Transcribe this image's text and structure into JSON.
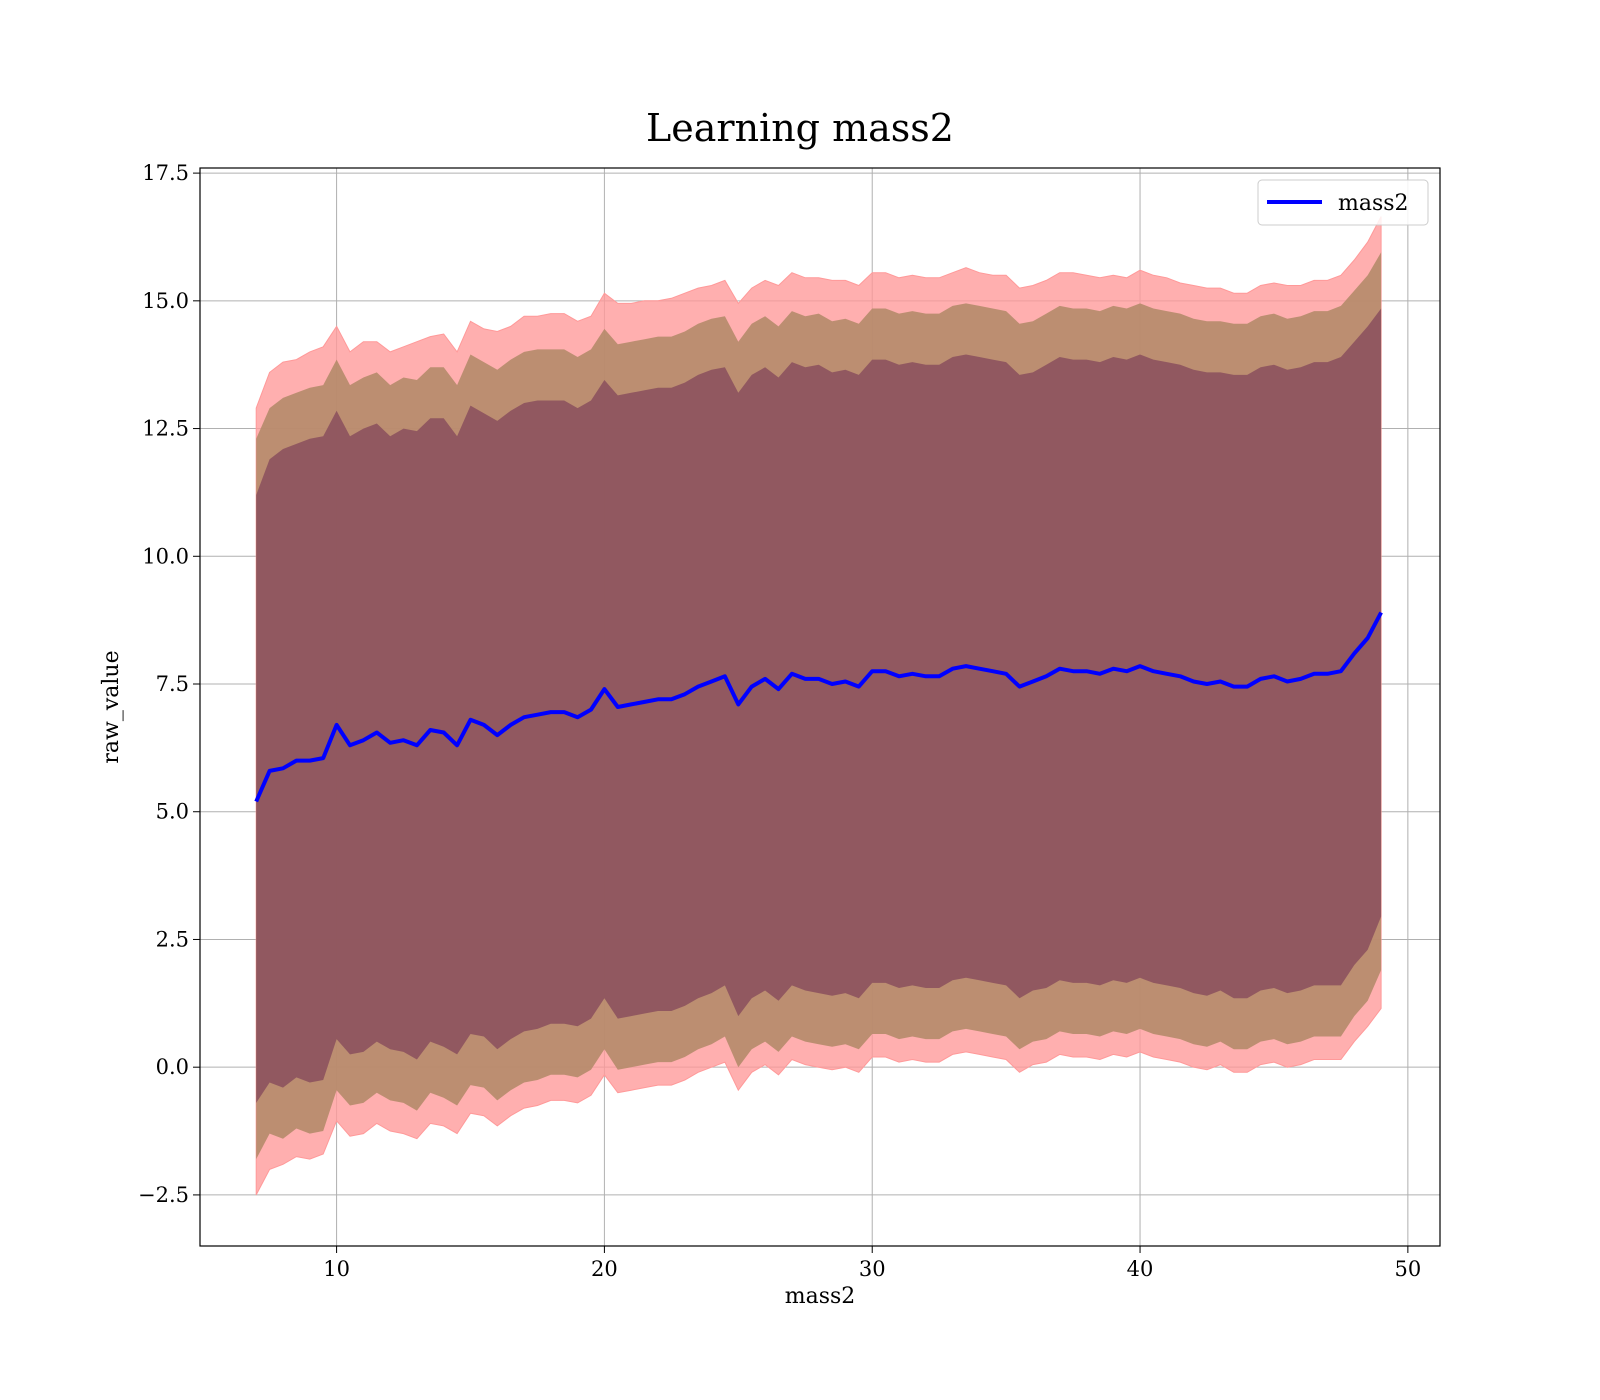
{
  "chart_data": {
    "type": "area",
    "title": "Learning mass2",
    "xlabel": "mass2",
    "ylabel": "raw_value",
    "xlim": [
      4.9,
      51.2
    ],
    "ylim": [
      -3.5,
      17.6
    ],
    "x_ticks": [
      10,
      20,
      30,
      40,
      50
    ],
    "y_ticks": [
      -2.5,
      0.0,
      2.5,
      5.0,
      7.5,
      10.0,
      12.5,
      15.0,
      17.5
    ],
    "x_tick_labels": [
      "10",
      "20",
      "30",
      "40",
      "50"
    ],
    "y_tick_labels": [
      "−2.5",
      "0.0",
      "2.5",
      "5.0",
      "7.5",
      "10.0",
      "12.5",
      "15.0",
      "17.5"
    ],
    "grid": true,
    "legend": {
      "placement": "top-right",
      "entries": [
        "mass2"
      ]
    },
    "band_colors": {
      "outer": "#ff9999",
      "middle": "#b08866",
      "inner": "#8a4f5d"
    },
    "series": [
      {
        "name": "mass2",
        "color": "#0000ff",
        "x": [
          7.0,
          7.5,
          8.0,
          8.5,
          9.0,
          9.5,
          10.0,
          10.5,
          11.0,
          11.5,
          12.0,
          12.5,
          13.0,
          13.5,
          14.0,
          14.5,
          15.0,
          15.5,
          16.0,
          16.5,
          17.0,
          17.5,
          18.0,
          18.5,
          19.0,
          19.5,
          20.0,
          20.5,
          21.0,
          21.5,
          22.0,
          22.5,
          23.0,
          23.5,
          24.0,
          24.5,
          25.0,
          25.5,
          26.0,
          26.5,
          27.0,
          27.5,
          28.0,
          28.5,
          29.0,
          29.5,
          30.0,
          30.5,
          31.0,
          31.5,
          32.0,
          32.5,
          33.0,
          33.5,
          34.0,
          34.5,
          35.0,
          35.5,
          36.0,
          36.5,
          37.0,
          37.5,
          38.0,
          38.5,
          39.0,
          39.5,
          40.0,
          40.5,
          41.0,
          41.5,
          42.0,
          42.5,
          43.0,
          43.5,
          44.0,
          44.5,
          45.0,
          45.5,
          46.0,
          46.5,
          47.0,
          47.5,
          48.0,
          48.5,
          49.0
        ],
        "values": [
          5.2,
          5.8,
          5.85,
          6.0,
          6.0,
          6.05,
          6.7,
          6.3,
          6.4,
          6.55,
          6.35,
          6.4,
          6.3,
          6.6,
          6.55,
          6.3,
          6.8,
          6.7,
          6.5,
          6.7,
          6.85,
          6.9,
          6.95,
          6.95,
          6.85,
          7.0,
          7.4,
          7.05,
          7.1,
          7.15,
          7.2,
          7.2,
          7.3,
          7.45,
          7.55,
          7.65,
          7.1,
          7.45,
          7.6,
          7.4,
          7.7,
          7.6,
          7.6,
          7.5,
          7.55,
          7.45,
          7.75,
          7.75,
          7.65,
          7.7,
          7.65,
          7.65,
          7.8,
          7.85,
          7.8,
          7.75,
          7.7,
          7.45,
          7.55,
          7.65,
          7.8,
          7.75,
          7.75,
          7.7,
          7.8,
          7.75,
          7.85,
          7.75,
          7.7,
          7.65,
          7.55,
          7.5,
          7.55,
          7.45,
          7.45,
          7.6,
          7.65,
          7.55,
          7.6,
          7.7,
          7.7,
          7.75,
          8.1,
          8.4,
          8.9
        ],
        "outer_upper": [
          12.9,
          13.6,
          13.8,
          13.85,
          14.0,
          14.1,
          14.5,
          14.0,
          14.2,
          14.2,
          14.0,
          14.1,
          14.2,
          14.3,
          14.35,
          14.0,
          14.6,
          14.45,
          14.4,
          14.5,
          14.7,
          14.7,
          14.75,
          14.75,
          14.6,
          14.7,
          15.15,
          14.95,
          14.95,
          15.0,
          15.0,
          15.05,
          15.15,
          15.25,
          15.3,
          15.4,
          14.95,
          15.25,
          15.4,
          15.3,
          15.55,
          15.45,
          15.45,
          15.4,
          15.4,
          15.3,
          15.55,
          15.55,
          15.45,
          15.5,
          15.45,
          15.45,
          15.55,
          15.65,
          15.55,
          15.5,
          15.5,
          15.25,
          15.3,
          15.4,
          15.55,
          15.55,
          15.5,
          15.45,
          15.5,
          15.45,
          15.6,
          15.5,
          15.45,
          15.35,
          15.3,
          15.25,
          15.25,
          15.15,
          15.15,
          15.3,
          15.35,
          15.3,
          15.3,
          15.4,
          15.4,
          15.5,
          15.8,
          16.15,
          16.65
        ],
        "middle_upper": [
          12.3,
          12.9,
          13.1,
          13.2,
          13.3,
          13.35,
          13.85,
          13.35,
          13.5,
          13.6,
          13.35,
          13.5,
          13.45,
          13.7,
          13.7,
          13.35,
          13.95,
          13.8,
          13.65,
          13.85,
          14.0,
          14.05,
          14.05,
          14.05,
          13.9,
          14.05,
          14.45,
          14.15,
          14.2,
          14.25,
          14.3,
          14.3,
          14.4,
          14.55,
          14.65,
          14.7,
          14.2,
          14.55,
          14.7,
          14.5,
          14.8,
          14.7,
          14.75,
          14.6,
          14.65,
          14.55,
          14.85,
          14.85,
          14.75,
          14.8,
          14.75,
          14.75,
          14.9,
          14.95,
          14.9,
          14.85,
          14.8,
          14.55,
          14.6,
          14.75,
          14.9,
          14.85,
          14.85,
          14.8,
          14.9,
          14.85,
          14.95,
          14.85,
          14.8,
          14.75,
          14.65,
          14.6,
          14.6,
          14.55,
          14.55,
          14.7,
          14.75,
          14.65,
          14.7,
          14.8,
          14.8,
          14.9,
          15.2,
          15.5,
          15.95
        ],
        "inner_upper": [
          11.2,
          11.9,
          12.1,
          12.2,
          12.3,
          12.35,
          12.85,
          12.35,
          12.5,
          12.6,
          12.35,
          12.5,
          12.45,
          12.7,
          12.7,
          12.35,
          12.95,
          12.8,
          12.65,
          12.85,
          13.0,
          13.05,
          13.05,
          13.05,
          12.9,
          13.05,
          13.45,
          13.15,
          13.2,
          13.25,
          13.3,
          13.3,
          13.4,
          13.55,
          13.65,
          13.7,
          13.2,
          13.55,
          13.7,
          13.5,
          13.8,
          13.7,
          13.75,
          13.6,
          13.65,
          13.55,
          13.85,
          13.85,
          13.75,
          13.8,
          13.75,
          13.75,
          13.9,
          13.95,
          13.9,
          13.85,
          13.8,
          13.55,
          13.6,
          13.75,
          13.9,
          13.85,
          13.85,
          13.8,
          13.9,
          13.85,
          13.95,
          13.85,
          13.8,
          13.75,
          13.65,
          13.6,
          13.6,
          13.55,
          13.55,
          13.7,
          13.75,
          13.65,
          13.7,
          13.8,
          13.8,
          13.9,
          14.2,
          14.5,
          14.85
        ],
        "inner_lower": [
          -0.7,
          -0.3,
          -0.4,
          -0.2,
          -0.3,
          -0.25,
          0.55,
          0.25,
          0.3,
          0.5,
          0.35,
          0.3,
          0.15,
          0.5,
          0.4,
          0.25,
          0.65,
          0.6,
          0.35,
          0.55,
          0.7,
          0.75,
          0.85,
          0.85,
          0.8,
          0.95,
          1.35,
          0.95,
          1.0,
          1.05,
          1.1,
          1.1,
          1.2,
          1.35,
          1.45,
          1.6,
          1.0,
          1.35,
          1.5,
          1.3,
          1.6,
          1.5,
          1.45,
          1.4,
          1.45,
          1.35,
          1.65,
          1.65,
          1.55,
          1.6,
          1.55,
          1.55,
          1.7,
          1.75,
          1.7,
          1.65,
          1.6,
          1.35,
          1.5,
          1.55,
          1.7,
          1.65,
          1.65,
          1.6,
          1.7,
          1.65,
          1.75,
          1.65,
          1.6,
          1.55,
          1.45,
          1.4,
          1.5,
          1.35,
          1.35,
          1.5,
          1.55,
          1.45,
          1.5,
          1.6,
          1.6,
          1.6,
          2.0,
          2.3,
          2.95
        ],
        "middle_lower": [
          -1.8,
          -1.3,
          -1.4,
          -1.2,
          -1.3,
          -1.25,
          -0.45,
          -0.75,
          -0.7,
          -0.5,
          -0.65,
          -0.7,
          -0.85,
          -0.5,
          -0.6,
          -0.75,
          -0.35,
          -0.4,
          -0.65,
          -0.45,
          -0.3,
          -0.25,
          -0.15,
          -0.15,
          -0.2,
          -0.05,
          0.35,
          -0.05,
          0.0,
          0.05,
          0.1,
          0.1,
          0.2,
          0.35,
          0.45,
          0.6,
          0.0,
          0.35,
          0.5,
          0.3,
          0.6,
          0.5,
          0.45,
          0.4,
          0.45,
          0.35,
          0.65,
          0.65,
          0.55,
          0.6,
          0.55,
          0.55,
          0.7,
          0.75,
          0.7,
          0.65,
          0.6,
          0.35,
          0.5,
          0.55,
          0.7,
          0.65,
          0.65,
          0.6,
          0.7,
          0.65,
          0.75,
          0.65,
          0.6,
          0.55,
          0.45,
          0.4,
          0.5,
          0.35,
          0.35,
          0.5,
          0.55,
          0.45,
          0.5,
          0.6,
          0.6,
          0.6,
          1.0,
          1.3,
          1.9
        ],
        "outer_lower": [
          -2.5,
          -2.0,
          -1.9,
          -1.75,
          -1.8,
          -1.7,
          -1.05,
          -1.35,
          -1.3,
          -1.1,
          -1.25,
          -1.3,
          -1.4,
          -1.1,
          -1.15,
          -1.3,
          -0.9,
          -0.95,
          -1.15,
          -0.95,
          -0.8,
          -0.75,
          -0.65,
          -0.65,
          -0.7,
          -0.55,
          -0.15,
          -0.5,
          -0.45,
          -0.4,
          -0.35,
          -0.35,
          -0.25,
          -0.1,
          0.0,
          0.1,
          -0.45,
          -0.1,
          0.05,
          -0.15,
          0.15,
          0.05,
          0.0,
          -0.05,
          0.0,
          -0.1,
          0.2,
          0.2,
          0.1,
          0.15,
          0.1,
          0.1,
          0.25,
          0.3,
          0.25,
          0.2,
          0.15,
          -0.1,
          0.05,
          0.1,
          0.25,
          0.2,
          0.2,
          0.15,
          0.25,
          0.2,
          0.3,
          0.2,
          0.15,
          0.1,
          0.0,
          -0.05,
          0.05,
          -0.1,
          -0.1,
          0.05,
          0.1,
          0.0,
          0.05,
          0.15,
          0.15,
          0.15,
          0.5,
          0.8,
          1.15
        ]
      }
    ]
  }
}
